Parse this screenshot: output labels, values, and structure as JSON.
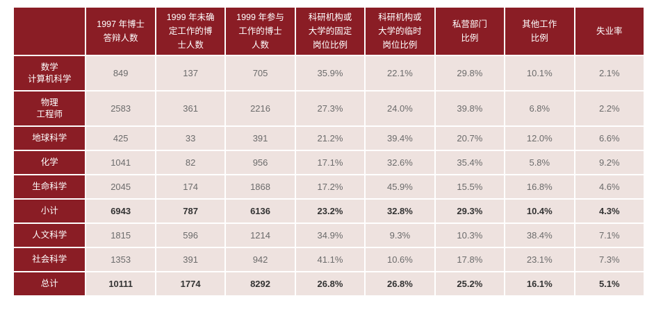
{
  "table": {
    "headers": [
      "",
      "1997 年博士\n答辩人数",
      "1999 年未确\n定工作的博\n士人数",
      "1999 年参与\n工作的博士\n人数",
      "科研机构或\n大学的固定\n岗位比例",
      "科研机构或\n大学的临时\n岗位比例",
      "私营部门\n比例",
      "其他工作\n比例",
      "失业率"
    ],
    "rows": [
      {
        "label": "数学\n计算机科学",
        "cells": [
          "849",
          "137",
          "705",
          "35.9%",
          "22.1%",
          "29.8%",
          "10.1%",
          "2.1%"
        ]
      },
      {
        "label": "物理\n工程师",
        "cells": [
          "2583",
          "361",
          "2216",
          "27.3%",
          "24.0%",
          "39.8%",
          "6.8%",
          "2.2%"
        ]
      },
      {
        "label": "地球科学",
        "cells": [
          "425",
          "33",
          "391",
          "21.2%",
          "39.4%",
          "20.7%",
          "12.0%",
          "6.6%"
        ]
      },
      {
        "label": "化学",
        "cells": [
          "1041",
          "82",
          "956",
          "17.1%",
          "32.6%",
          "35.4%",
          "5.8%",
          "9.2%"
        ]
      },
      {
        "label": "生命科学",
        "cells": [
          "2045",
          "174",
          "1868",
          "17.2%",
          "45.9%",
          "15.5%",
          "16.8%",
          "4.6%"
        ]
      },
      {
        "label": "小计",
        "cells": [
          "6943",
          "787",
          "6136",
          "23.2%",
          "32.8%",
          "29.3%",
          "10.4%",
          "4.3%"
        ]
      },
      {
        "label": "人文科学",
        "cells": [
          "1815",
          "596",
          "1214",
          "34.9%",
          "9.3%",
          "10.3%",
          "38.4%",
          "7.1%"
        ]
      },
      {
        "label": "社会科学",
        "cells": [
          "1353",
          "391",
          "942",
          "41.1%",
          "10.6%",
          "17.8%",
          "23.1%",
          "7.3%"
        ]
      },
      {
        "label": "总计",
        "cells": [
          "10111",
          "1774",
          "8292",
          "26.8%",
          "26.8%",
          "25.2%",
          "16.1%",
          "5.1%"
        ]
      }
    ]
  },
  "colors": {
    "header_bg": "#8a1d25",
    "cell_bg": "#eee2df",
    "text_light": "#ffffff",
    "text_value": "#6b6b6b"
  }
}
